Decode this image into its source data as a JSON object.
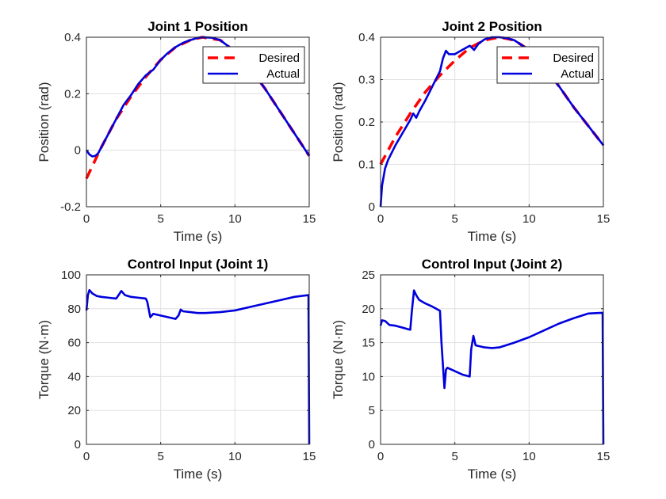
{
  "chart_data": [
    {
      "type": "line",
      "title": "Joint 1 Position",
      "xlabel": "Time (s)",
      "ylabel": "Position (rad)",
      "xlim": [
        0,
        15
      ],
      "ylim": [
        -0.2,
        0.4
      ],
      "xticks": [
        0,
        5,
        10,
        15
      ],
      "yticks": [
        -0.2,
        0,
        0.2,
        0.4
      ],
      "ytick_labels": [
        "-0.2",
        "0",
        "0.2",
        "0.4"
      ],
      "grid": true,
      "legend": "top-right",
      "series": [
        {
          "name": "Desired",
          "color": "#ff0000",
          "style": "dashed",
          "x": [
            0,
            1,
            2,
            3,
            4,
            5,
            6,
            7,
            7.8,
            9,
            10,
            11,
            12,
            13,
            14,
            15
          ],
          "y": [
            -0.1,
            0.01,
            0.11,
            0.19,
            0.26,
            0.32,
            0.365,
            0.39,
            0.4,
            0.39,
            0.35,
            0.29,
            0.22,
            0.14,
            0.06,
            -0.02
          ]
        },
        {
          "name": "Actual",
          "color": "#0000dd",
          "style": "solid",
          "x": [
            0,
            0.2,
            0.4,
            0.6,
            0.8,
            1,
            1.5,
            2,
            2.5,
            3,
            3.5,
            4,
            4.5,
            5,
            5.5,
            6,
            6.5,
            7,
            7.5,
            7.8,
            8.5,
            9,
            10,
            11,
            12,
            13,
            14,
            15
          ],
          "y": [
            0,
            -0.015,
            -0.022,
            -0.02,
            -0.01,
            0.01,
            0.06,
            0.11,
            0.16,
            0.195,
            0.235,
            0.265,
            0.285,
            0.32,
            0.345,
            0.365,
            0.38,
            0.39,
            0.398,
            0.4,
            0.398,
            0.39,
            0.35,
            0.29,
            0.22,
            0.14,
            0.06,
            -0.02
          ]
        }
      ]
    },
    {
      "type": "line",
      "title": "Joint 2 Position",
      "xlabel": "Time (s)",
      "ylabel": "Position (rad)",
      "xlim": [
        0,
        15
      ],
      "ylim": [
        0,
        0.4
      ],
      "xticks": [
        0,
        5,
        10,
        15
      ],
      "yticks": [
        0,
        0.1,
        0.2,
        0.3,
        0.4
      ],
      "ytick_labels": [
        "0",
        "0.1",
        "0.2",
        "0.3",
        "0.4"
      ],
      "grid": true,
      "legend": "top-right",
      "series": [
        {
          "name": "Desired",
          "color": "#ff0000",
          "style": "dashed",
          "x": [
            0,
            1,
            2,
            3,
            4,
            5,
            6,
            7,
            8,
            9,
            10,
            11,
            12,
            13,
            14,
            15
          ],
          "y": [
            0.1,
            0.165,
            0.22,
            0.27,
            0.31,
            0.345,
            0.375,
            0.393,
            0.4,
            0.393,
            0.37,
            0.33,
            0.285,
            0.235,
            0.19,
            0.145
          ]
        },
        {
          "name": "Actual",
          "color": "#0000dd",
          "style": "solid",
          "x": [
            0,
            0.1,
            0.3,
            0.5,
            1,
            1.5,
            2,
            2.2,
            2.4,
            2.6,
            3,
            3.5,
            4,
            4.2,
            4.4,
            4.6,
            5,
            5.5,
            6,
            6.3,
            6.6,
            7,
            7.5,
            8,
            8.5,
            9,
            10,
            11,
            12,
            13,
            14,
            15
          ],
          "y": [
            0,
            0.05,
            0.09,
            0.11,
            0.145,
            0.175,
            0.205,
            0.22,
            0.21,
            0.225,
            0.25,
            0.285,
            0.32,
            0.35,
            0.368,
            0.36,
            0.36,
            0.37,
            0.38,
            0.37,
            0.385,
            0.395,
            0.4,
            0.4,
            0.398,
            0.393,
            0.37,
            0.33,
            0.285,
            0.235,
            0.19,
            0.145
          ]
        }
      ]
    },
    {
      "type": "line",
      "title": "Control Input (Joint 1)",
      "xlabel": "Time (s)",
      "ylabel": "Torque (N·m)",
      "xlim": [
        0,
        15
      ],
      "ylim": [
        0,
        100
      ],
      "xticks": [
        0,
        5,
        10,
        15
      ],
      "yticks": [
        0,
        20,
        40,
        60,
        80,
        100
      ],
      "ytick_labels": [
        "0",
        "20",
        "40",
        "60",
        "80",
        "100"
      ],
      "grid": true,
      "series": [
        {
          "name": "",
          "color": "#0000dd",
          "style": "solid",
          "x": [
            0,
            0.1,
            0.2,
            0.4,
            0.7,
            1,
            1.5,
            2,
            2.2,
            2.35,
            2.6,
            3,
            3.5,
            4,
            4.1,
            4.3,
            4.5,
            5,
            5.5,
            6,
            6.2,
            6.35,
            6.5,
            7,
            7.5,
            8,
            9,
            10,
            11,
            12,
            13,
            14,
            14.9,
            14.95,
            15
          ],
          "y": [
            79,
            88,
            91,
            89,
            87.5,
            87,
            86.5,
            86,
            88.5,
            90.5,
            88,
            87,
            86.5,
            86,
            84,
            75,
            77,
            76,
            75,
            74,
            76,
            79.5,
            78.5,
            78,
            77.5,
            77.5,
            78,
            79,
            81,
            83,
            85,
            87,
            88,
            88,
            0
          ]
        }
      ]
    },
    {
      "type": "line",
      "title": "Control Input (Joint 2)",
      "xlabel": "Time (s)",
      "ylabel": "Torque (N·m)",
      "xlim": [
        0,
        15
      ],
      "ylim": [
        0,
        25
      ],
      "xticks": [
        0,
        5,
        10,
        15
      ],
      "yticks": [
        0,
        5,
        10,
        15,
        20,
        25
      ],
      "ytick_labels": [
        "0",
        "5",
        "10",
        "15",
        "20",
        "25"
      ],
      "grid": true,
      "series": [
        {
          "name": "",
          "color": "#0000dd",
          "style": "solid",
          "x": [
            0,
            0.1,
            0.3,
            0.6,
            1,
            1.5,
            2,
            2.1,
            2.25,
            2.4,
            2.6,
            3,
            3.5,
            4,
            4.1,
            4.3,
            4.4,
            4.5,
            5,
            5.5,
            6,
            6.1,
            6.25,
            6.4,
            7,
            7.5,
            8,
            9,
            10,
            11,
            12,
            13,
            14,
            14.9,
            14.95,
            15
          ],
          "y": [
            17.5,
            18.3,
            18.2,
            17.6,
            17.5,
            17.2,
            16.9,
            19.5,
            22.7,
            22,
            21.3,
            20.8,
            20.3,
            19.7,
            15,
            8.3,
            11,
            11.3,
            10.8,
            10.3,
            10,
            14,
            16,
            14.6,
            14.3,
            14.2,
            14.3,
            15,
            15.8,
            16.8,
            17.8,
            18.6,
            19.3,
            19.4,
            19.4,
            0
          ]
        }
      ]
    }
  ]
}
